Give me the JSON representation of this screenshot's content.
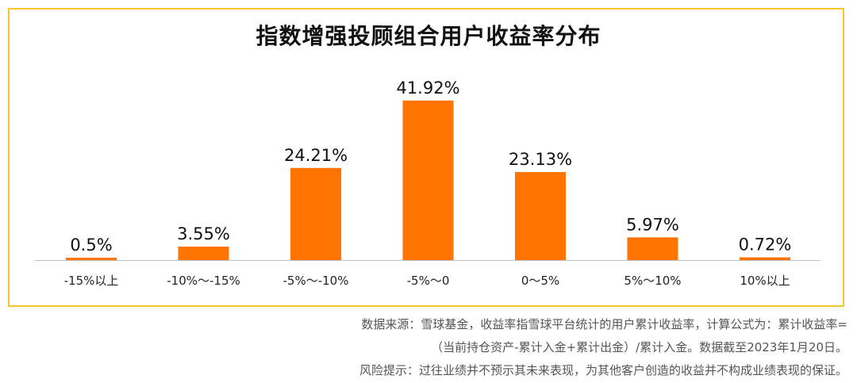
{
  "chart_data": {
    "type": "bar",
    "title": "指数增强投顾组合用户收益率分布",
    "categories": [
      "-15%以上",
      "-10%～-15%",
      "-5%～-10%",
      "-5%～0",
      "0～5%",
      "5%～10%",
      "10%以上"
    ],
    "values": [
      0.5,
      3.55,
      24.21,
      41.92,
      23.13,
      5.97,
      0.72
    ],
    "data_labels": [
      "0.5%",
      "3.55%",
      "24.21%",
      "41.92%",
      "23.13%",
      "5.97%",
      "0.72%"
    ],
    "ylim": [
      0,
      45
    ],
    "grid": false,
    "bar_color": "#ff7300",
    "frame_color": "#f6c62c"
  },
  "notes": {
    "line1": "数据来源：雪球基金，收益率指雪球平台统计的用户累计收益率，计算公式为：累计收益率=",
    "line2": "（当前持仓资产-累计入金+累计出金）/累计入金。数据截至2023年1月20日。",
    "line3": "风险提示：过往业绩并不预示其未来表现，为其他客户创造的收益并不构成业绩表现的保证。"
  }
}
